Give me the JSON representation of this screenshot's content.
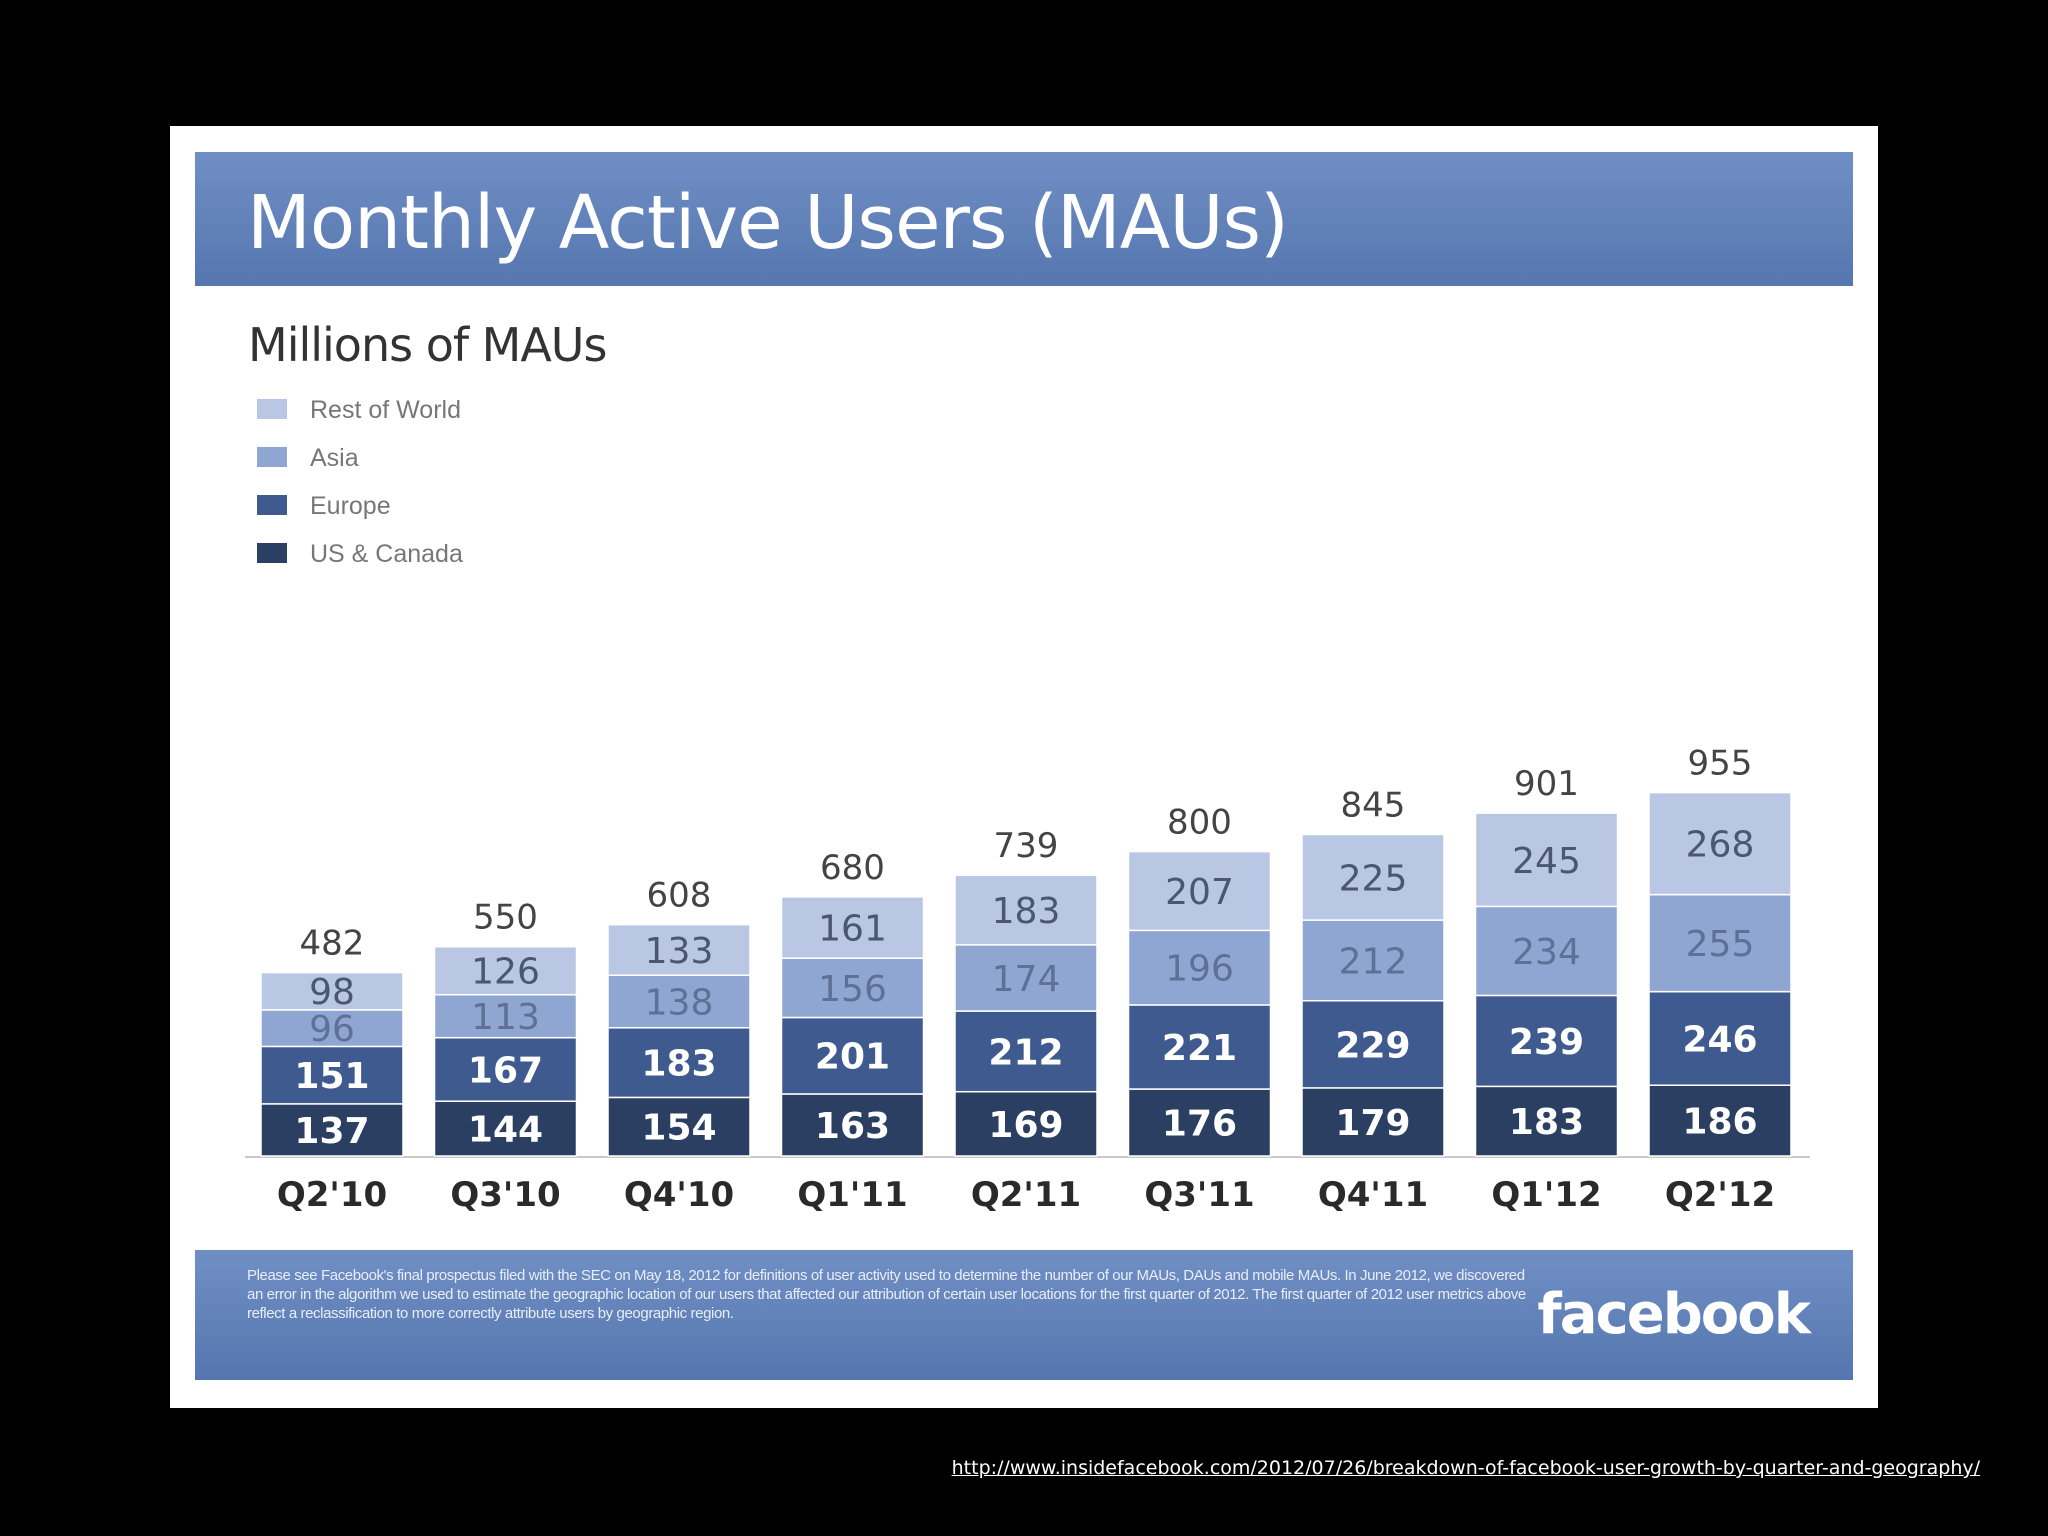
{
  "slide": {
    "title": "Monthly Active Users (MAUs)",
    "footnote": "Please see Facebook's final prospectus filed with the SEC on May 18, 2012 for definitions of user activity used to determine the number of our MAUs, DAUs and mobile MAUs. In June 2012, we discovered an error in the algorithm we used to estimate the geographic location of our users that affected our attribution of certain user locations for the first quarter of 2012. The first quarter of 2012 user metrics above reflect a reclassification to more correctly attribute users by geographic region.",
    "logo_text": "facebook"
  },
  "source_url": "http://www.insidefacebook.com/2012/07/26/breakdown-of-facebook-user-growth-by-quarter-and-geography/",
  "chart_data": {
    "type": "bar",
    "stacked": true,
    "title": "Millions of MAUs",
    "xlabel": "",
    "ylabel": "",
    "categories": [
      "Q2'10",
      "Q3'10",
      "Q4'10",
      "Q1'11",
      "Q2'11",
      "Q3'11",
      "Q4'11",
      "Q1'12",
      "Q2'12"
    ],
    "series": [
      {
        "name": "US & Canada",
        "color": "#2b3f63",
        "label_color": "#ffffff",
        "values": [
          137,
          144,
          154,
          163,
          169,
          176,
          179,
          183,
          186
        ]
      },
      {
        "name": "Europe",
        "color": "#3f5a8e",
        "label_color": "#ffffff",
        "values": [
          151,
          167,
          183,
          201,
          212,
          221,
          229,
          239,
          246
        ]
      },
      {
        "name": "Asia",
        "color": "#8fa6d2",
        "label_color": "#5f7096",
        "values": [
          96,
          113,
          138,
          156,
          174,
          196,
          212,
          234,
          255
        ]
      },
      {
        "name": "Rest of World",
        "color": "#b9c7e4",
        "label_color": "#4b5670",
        "values": [
          98,
          126,
          133,
          161,
          183,
          207,
          225,
          245,
          268
        ]
      }
    ],
    "totals": [
      482,
      550,
      608,
      680,
      739,
      800,
      845,
      901,
      955
    ],
    "legend_position": "top-left",
    "grid": false
  }
}
